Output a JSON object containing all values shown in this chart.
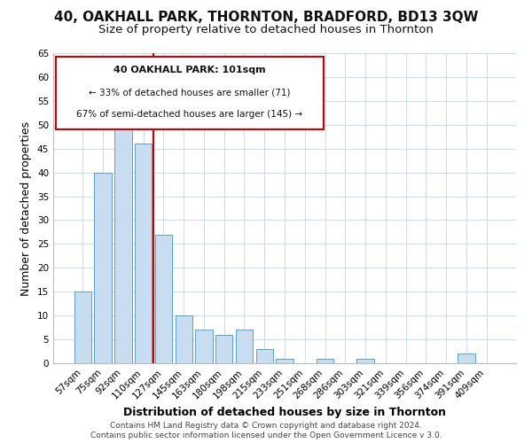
{
  "title1": "40, OAKHALL PARK, THORNTON, BRADFORD, BD13 3QW",
  "title2": "Size of property relative to detached houses in Thornton",
  "xlabel": "Distribution of detached houses by size in Thornton",
  "ylabel": "Number of detached properties",
  "bar_labels": [
    "57sqm",
    "75sqm",
    "92sqm",
    "110sqm",
    "127sqm",
    "145sqm",
    "163sqm",
    "180sqm",
    "198sqm",
    "215sqm",
    "233sqm",
    "251sqm",
    "268sqm",
    "286sqm",
    "303sqm",
    "321sqm",
    "339sqm",
    "356sqm",
    "374sqm",
    "391sqm",
    "409sqm"
  ],
  "bar_values": [
    15,
    40,
    51,
    46,
    27,
    10,
    7,
    6,
    7,
    3,
    1,
    0,
    1,
    0,
    1,
    0,
    0,
    0,
    0,
    2,
    0
  ],
  "bar_color": "#c8ddf0",
  "bar_edge_color": "#5a9fd4",
  "vline_x": 3.5,
  "vline_color": "#cc0000",
  "ylim": [
    0,
    65
  ],
  "yticks": [
    0,
    5,
    10,
    15,
    20,
    25,
    30,
    35,
    40,
    45,
    50,
    55,
    60,
    65
  ],
  "annotation_title": "40 OAKHALL PARK: 101sqm",
  "annotation_line1": "← 33% of detached houses are smaller (71)",
  "annotation_line2": "67% of semi-detached houses are larger (145) →",
  "annotation_box_color": "#ffffff",
  "annotation_box_edge": "#cc0000",
  "footer1": "Contains HM Land Registry data © Crown copyright and database right 2024.",
  "footer2": "Contains public sector information licensed under the Open Government Licence v 3.0.",
  "bg_color": "#ffffff",
  "grid_color": "#d0dde8",
  "title1_fontsize": 11,
  "title2_fontsize": 9.5,
  "axis_label_fontsize": 9,
  "tick_fontsize": 7.5,
  "footer_fontsize": 6.5
}
